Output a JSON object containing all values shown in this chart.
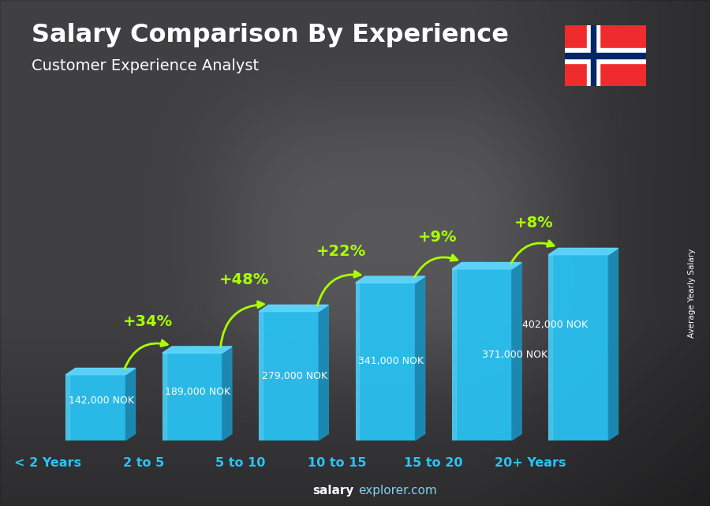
{
  "title": "Salary Comparison By Experience",
  "subtitle": "Customer Experience Analyst",
  "categories": [
    "< 2 Years",
    "2 to 5",
    "5 to 10",
    "10 to 15",
    "15 to 20",
    "20+ Years"
  ],
  "values": [
    142000,
    189000,
    279000,
    341000,
    371000,
    402000
  ],
  "salary_labels": [
    "142,000 NOK",
    "189,000 NOK",
    "279,000 NOK",
    "341,000 NOK",
    "371,000 NOK",
    "402,000 NOK"
  ],
  "pct_labels": [
    "+34%",
    "+48%",
    "+22%",
    "+9%",
    "+8%"
  ],
  "bar_color_main": "#29C5F6",
  "bar_color_right": "#1A8FBB",
  "bar_color_top": "#5DD8FF",
  "bar_color_left": "#1E9DC5",
  "bg_dark": "#404040",
  "title_color": "#FFFFFF",
  "subtitle_color": "#FFFFFF",
  "salary_label_color": "#FFFFFF",
  "pct_color": "#AAFF00",
  "cat_label_color": "#29C5F6",
  "watermark_bold": "salary",
  "watermark_normal": "explorer.com",
  "ylabel_text": "Average Yearly Salary",
  "figsize": [
    9.0,
    6.41
  ],
  "dpi": 100,
  "flag_red": "#EF2B2D",
  "flag_blue": "#002868",
  "flag_white": "#FFFFFF"
}
